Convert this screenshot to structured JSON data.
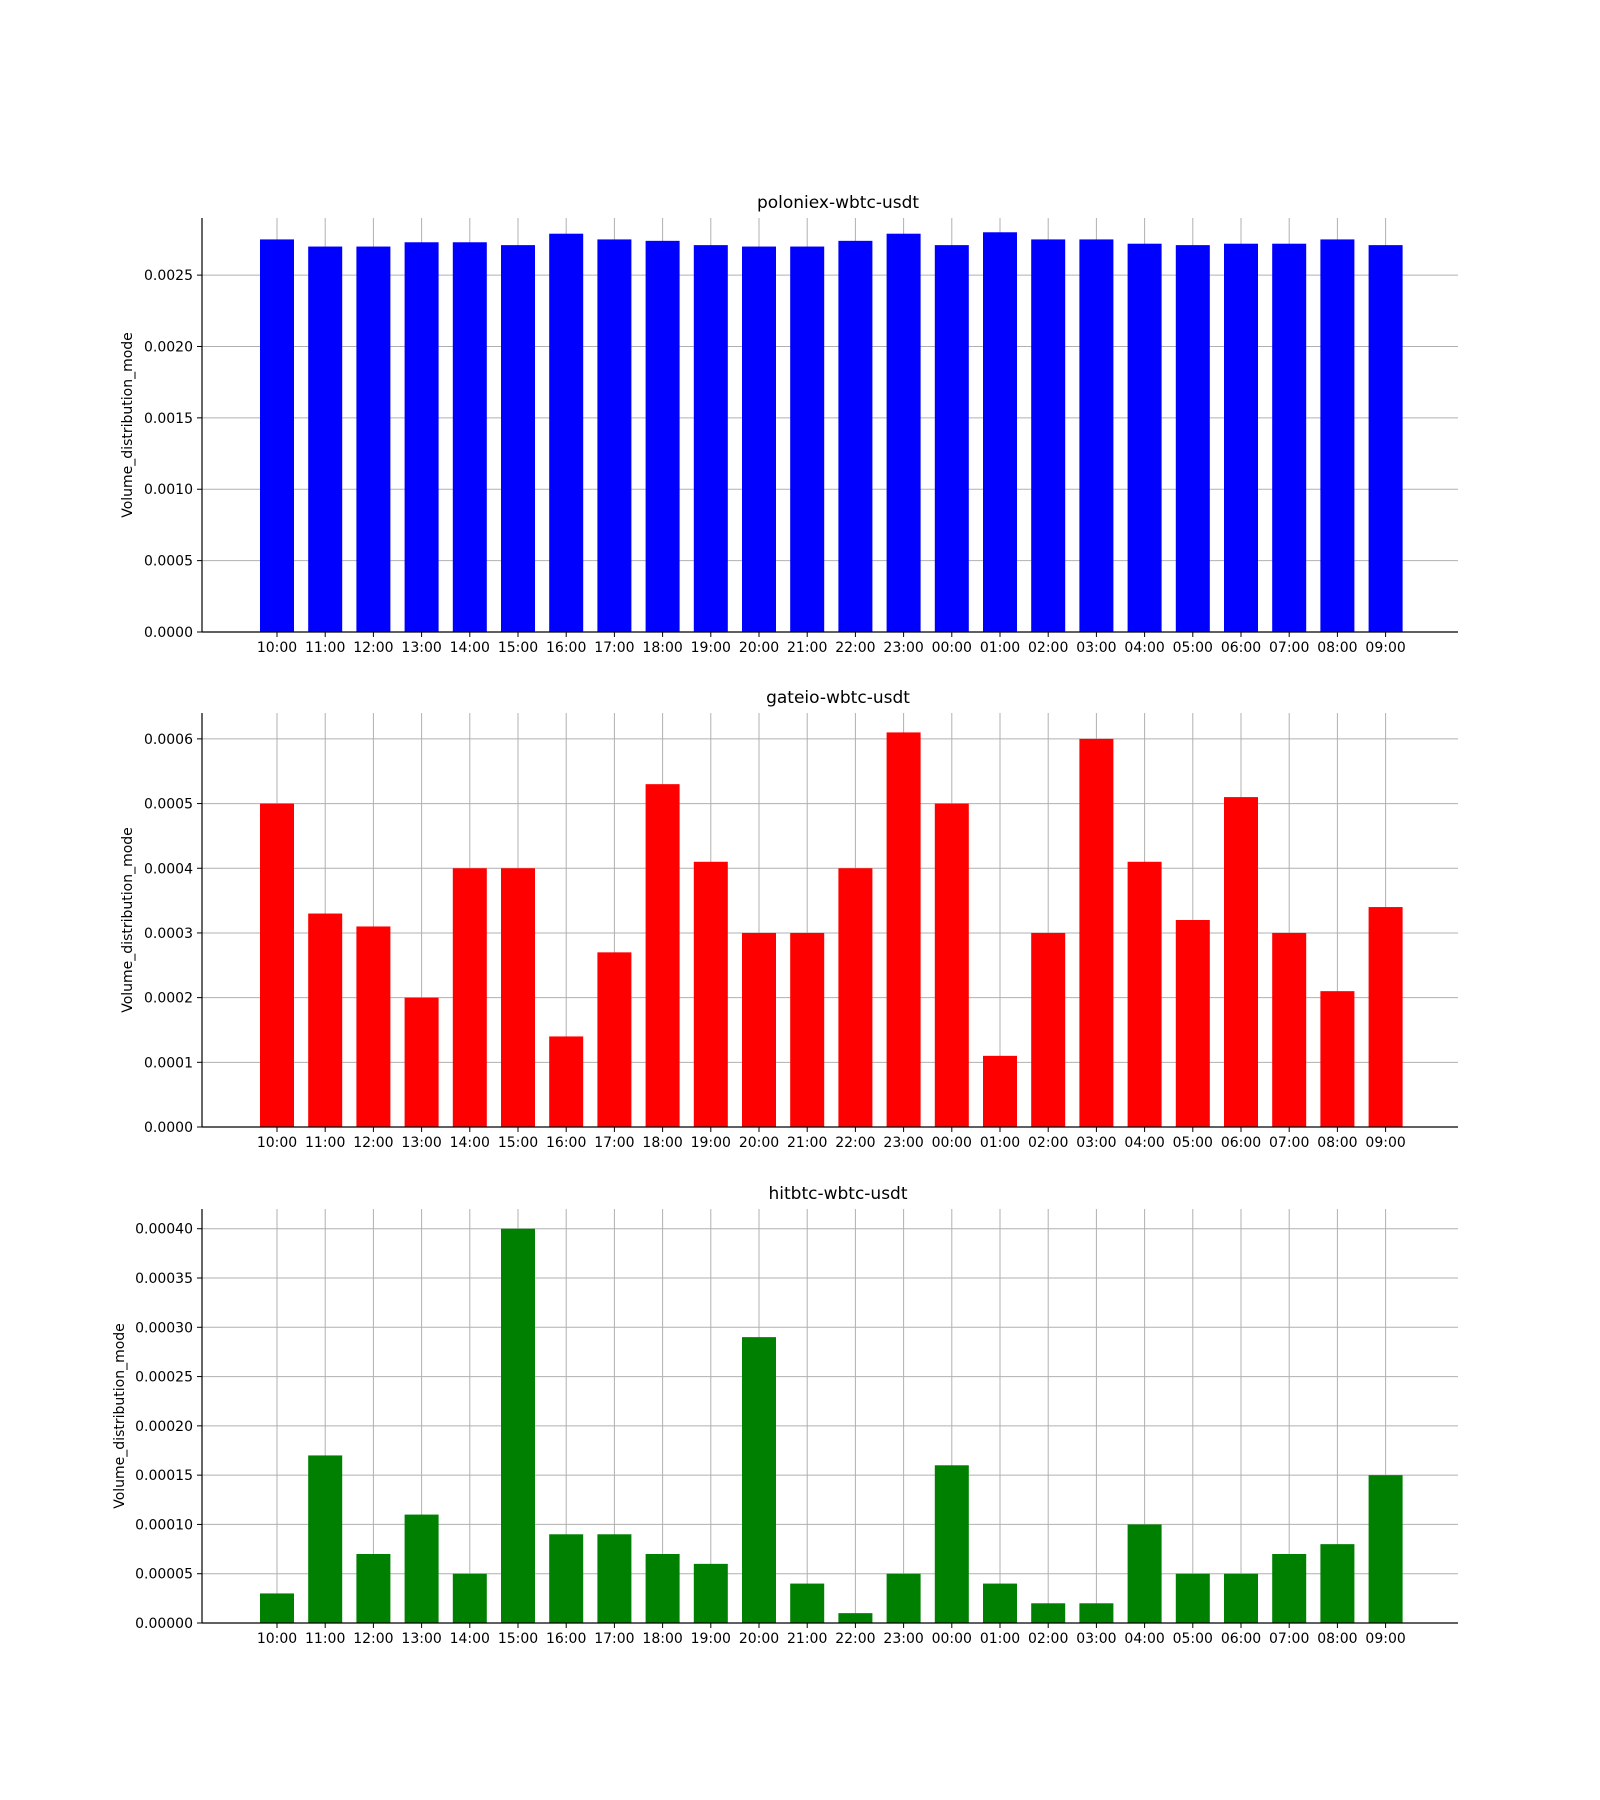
{
  "chart_data": [
    {
      "type": "bar",
      "title": "poloniex-wbtc-usdt",
      "xlabel": "",
      "ylabel": "Volume_distribution_mode",
      "color": "#0000ff",
      "grid": true,
      "categories": [
        "10:00",
        "11:00",
        "12:00",
        "13:00",
        "14:00",
        "15:00",
        "16:00",
        "17:00",
        "18:00",
        "19:00",
        "20:00",
        "21:00",
        "22:00",
        "23:00",
        "00:00",
        "01:00",
        "02:00",
        "03:00",
        "04:00",
        "05:00",
        "06:00",
        "07:00",
        "08:00",
        "09:00"
      ],
      "values": [
        0.00275,
        0.0027,
        0.0027,
        0.00273,
        0.00273,
        0.00271,
        0.00279,
        0.00275,
        0.00274,
        0.00271,
        0.0027,
        0.0027,
        0.00274,
        0.00279,
        0.00271,
        0.0028,
        0.00275,
        0.00275,
        0.00272,
        0.00271,
        0.00272,
        0.00272,
        0.00275,
        0.00271
      ],
      "ylim": [
        0,
        0.0029
      ],
      "yticks": [
        0,
        0.0005,
        0.001,
        0.0015,
        0.002,
        0.0025
      ],
      "ytick_labels": [
        "0.0000",
        "0.0005",
        "0.0010",
        "0.0015",
        "0.0020",
        "0.0025"
      ]
    },
    {
      "type": "bar",
      "title": "gateio-wbtc-usdt",
      "xlabel": "",
      "ylabel": "Volume_distribution_mode",
      "color": "#ff0000",
      "grid": true,
      "categories": [
        "10:00",
        "11:00",
        "12:00",
        "13:00",
        "14:00",
        "15:00",
        "16:00",
        "17:00",
        "18:00",
        "19:00",
        "20:00",
        "21:00",
        "22:00",
        "23:00",
        "00:00",
        "01:00",
        "02:00",
        "03:00",
        "04:00",
        "05:00",
        "06:00",
        "07:00",
        "08:00",
        "09:00"
      ],
      "values": [
        0.0005,
        0.00033,
        0.00031,
        0.0002,
        0.0004,
        0.0004,
        0.00014,
        0.00027,
        0.00053,
        0.00041,
        0.0003,
        0.0003,
        0.0004,
        0.00061,
        0.0005,
        0.00011,
        0.0003,
        0.0006,
        0.00041,
        0.00032,
        0.00051,
        0.0003,
        0.00021,
        0.00034
      ],
      "ylim": [
        0,
        0.00064
      ],
      "yticks": [
        0,
        0.0001,
        0.0002,
        0.0003,
        0.0004,
        0.0005,
        0.0006
      ],
      "ytick_labels": [
        "0.0000",
        "0.0001",
        "0.0002",
        "0.0003",
        "0.0004",
        "0.0005",
        "0.0006"
      ]
    },
    {
      "type": "bar",
      "title": "hitbtc-wbtc-usdt",
      "xlabel": "",
      "ylabel": "Volume_distribution_mode",
      "color": "#008000",
      "grid": true,
      "categories": [
        "10:00",
        "11:00",
        "12:00",
        "13:00",
        "14:00",
        "15:00",
        "16:00",
        "17:00",
        "18:00",
        "19:00",
        "20:00",
        "21:00",
        "22:00",
        "23:00",
        "00:00",
        "01:00",
        "02:00",
        "03:00",
        "04:00",
        "05:00",
        "06:00",
        "07:00",
        "08:00",
        "09:00"
      ],
      "values": [
        3e-05,
        0.00017,
        7e-05,
        0.00011,
        5e-05,
        0.0004,
        9e-05,
        9e-05,
        7e-05,
        6e-05,
        0.00029,
        4e-05,
        1e-05,
        5e-05,
        0.00016,
        4e-05,
        2e-05,
        2e-05,
        0.0001,
        5e-05,
        5e-05,
        7e-05,
        8e-05,
        0.00015
      ],
      "ylim": [
        0,
        0.00042
      ],
      "yticks": [
        0,
        5e-05,
        0.0001,
        0.00015,
        0.0002,
        0.00025,
        0.0003,
        0.00035,
        0.0004
      ],
      "ytick_labels": [
        "0.00000",
        "0.00005",
        "0.00010",
        "0.00015",
        "0.00020",
        "0.00025",
        "0.00030",
        "0.00035",
        "0.00040"
      ]
    }
  ]
}
